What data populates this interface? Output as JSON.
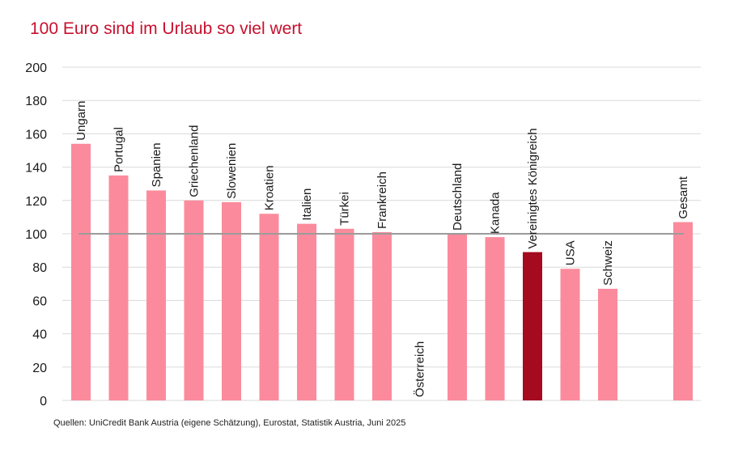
{
  "chart_data": {
    "type": "bar",
    "title": "100 Euro sind im Urlaub so viel wert",
    "categories": [
      "Ungarn",
      "Portugal",
      "Spanien",
      "Griechenland",
      "Slowenien",
      "Kroatien",
      "Italien",
      "Türkei",
      "Frankreich",
      "Österreich",
      "Deutschland",
      "Kanada",
      "Vereinigtes Königreich",
      "USA",
      "Schweiz",
      "",
      "Gesamt"
    ],
    "values": [
      154,
      135,
      126,
      120,
      119,
      112,
      106,
      103,
      101,
      0,
      100,
      98,
      89,
      79,
      67,
      null,
      107
    ],
    "highlight_index": 12,
    "reference_line": 100,
    "ylim": [
      0,
      200
    ],
    "yticks": [
      "0",
      "20",
      "40",
      "60",
      "80",
      "100",
      "120",
      "140",
      "160",
      "180",
      "200"
    ],
    "xlabel": "",
    "ylabel": "",
    "grid": true,
    "colors": {
      "bar": "#fb8b9c",
      "highlight": "#a50a1e",
      "reference_line": "#9b9b9b",
      "grid": "#d9d9d9",
      "title": "#c8102e"
    }
  },
  "source": "Quellen: UniCredit Bank Austria (eigene Schätzung), Eurostat, Statistik Austria,  Juni 2025"
}
